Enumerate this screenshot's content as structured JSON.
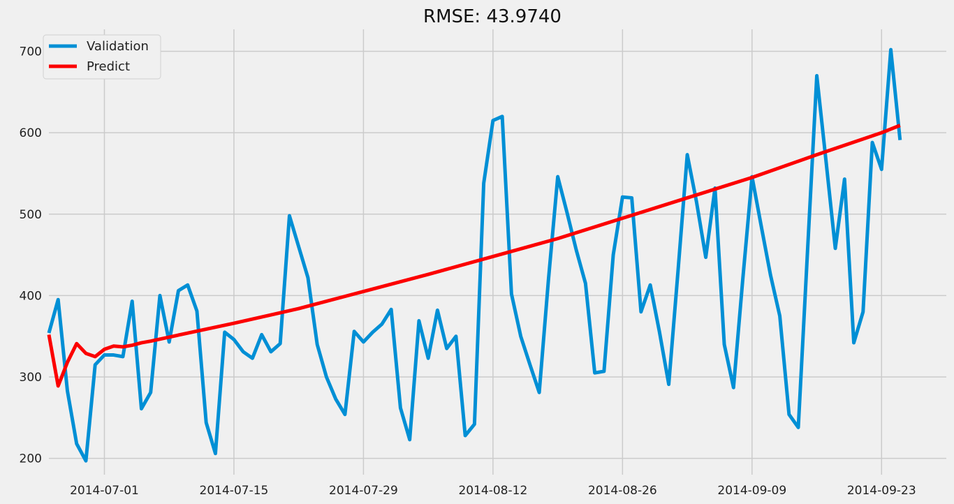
{
  "chart_data": {
    "type": "line",
    "title": "RMSE: 43.9740",
    "xlabel": "",
    "ylabel": "",
    "x_axis_type": "date",
    "xlim": [
      "2014-06-25",
      "2014-09-30"
    ],
    "ylim": [
      180,
      727
    ],
    "grid": true,
    "legend_position": "top-left",
    "x_ticks": [
      "2014-07-01",
      "2014-07-15",
      "2014-07-29",
      "2014-08-12",
      "2014-08-26",
      "2014-09-09",
      "2014-09-23"
    ],
    "y_ticks": [
      200,
      300,
      400,
      500,
      600,
      700
    ],
    "series": [
      {
        "name": "Validation",
        "color": "#008fd5",
        "x": [
          "2014-06-25",
          "2014-06-26",
          "2014-06-27",
          "2014-06-28",
          "2014-06-29",
          "2014-06-30",
          "2014-07-01",
          "2014-07-02",
          "2014-07-03",
          "2014-07-04",
          "2014-07-05",
          "2014-07-06",
          "2014-07-07",
          "2014-07-08",
          "2014-07-09",
          "2014-07-10",
          "2014-07-11",
          "2014-07-12",
          "2014-07-13",
          "2014-07-14",
          "2014-07-15",
          "2014-07-16",
          "2014-07-17",
          "2014-07-18",
          "2014-07-19",
          "2014-07-20",
          "2014-07-21",
          "2014-07-22",
          "2014-07-23",
          "2014-07-24",
          "2014-07-25",
          "2014-07-26",
          "2014-07-27",
          "2014-07-28",
          "2014-07-29",
          "2014-07-30",
          "2014-07-31",
          "2014-08-01",
          "2014-08-02",
          "2014-08-03",
          "2014-08-04",
          "2014-08-05",
          "2014-08-06",
          "2014-08-07",
          "2014-08-08",
          "2014-08-09",
          "2014-08-10",
          "2014-08-11",
          "2014-08-12",
          "2014-08-13",
          "2014-08-14",
          "2014-08-15",
          "2014-08-16",
          "2014-08-17",
          "2014-08-18",
          "2014-08-19",
          "2014-08-20",
          "2014-08-21",
          "2014-08-22",
          "2014-08-23",
          "2014-08-24",
          "2014-08-25",
          "2014-08-26",
          "2014-08-27",
          "2014-08-28",
          "2014-08-29",
          "2014-08-30",
          "2014-08-31",
          "2014-09-01",
          "2014-09-02",
          "2014-09-03",
          "2014-09-04",
          "2014-09-05",
          "2014-09-06",
          "2014-09-07",
          "2014-09-08",
          "2014-09-09",
          "2014-09-10",
          "2014-09-11",
          "2014-09-12",
          "2014-09-13",
          "2014-09-14",
          "2014-09-15",
          "2014-09-16",
          "2014-09-17",
          "2014-09-18",
          "2014-09-19",
          "2014-09-20",
          "2014-09-21",
          "2014-09-22",
          "2014-09-23",
          "2014-09-24",
          "2014-09-25"
        ],
        "values": [
          354,
          395,
          283,
          218,
          197,
          315,
          327,
          327,
          325,
          393,
          261,
          281,
          400,
          343,
          406,
          413,
          381,
          244,
          206,
          355,
          346,
          331,
          323,
          352,
          331,
          341,
          498,
          460,
          422,
          340,
          300,
          273,
          254,
          356,
          343,
          355,
          365,
          383,
          262,
          223,
          369,
          323,
          382,
          335,
          350,
          228,
          242,
          538,
          615,
          620,
          402,
          350,
          315,
          281,
          420,
          546,
          502,
          456,
          415,
          305,
          307,
          450,
          521,
          520,
          380,
          413,
          355,
          291,
          430,
          573,
          515,
          447,
          532,
          340,
          287,
          420,
          546,
          485,
          425,
          375,
          254,
          238,
          455,
          670,
          565,
          458,
          543,
          342,
          380,
          588,
          555,
          702,
          591
        ]
      },
      {
        "name": "Predict",
        "color": "#fc0000",
        "x": [
          "2014-06-25",
          "2014-06-26",
          "2014-06-27",
          "2014-06-28",
          "2014-06-29",
          "2014-06-30",
          "2014-07-01",
          "2014-07-02",
          "2014-07-03",
          "2014-07-04",
          "2014-07-05",
          "2014-07-06",
          "2014-07-08",
          "2014-07-15",
          "2014-07-22",
          "2014-07-29",
          "2014-08-05",
          "2014-08-12",
          "2014-08-19",
          "2014-08-26",
          "2014-09-02",
          "2014-09-09",
          "2014-09-16",
          "2014-09-23",
          "2014-09-25"
        ],
        "values": [
          352,
          289,
          318,
          341,
          329,
          325,
          334,
          338,
          337,
          339,
          342,
          344,
          349,
          366,
          384,
          405,
          426,
          448,
          470,
          495,
          520,
          545,
          573,
          600,
          609
        ]
      }
    ]
  }
}
